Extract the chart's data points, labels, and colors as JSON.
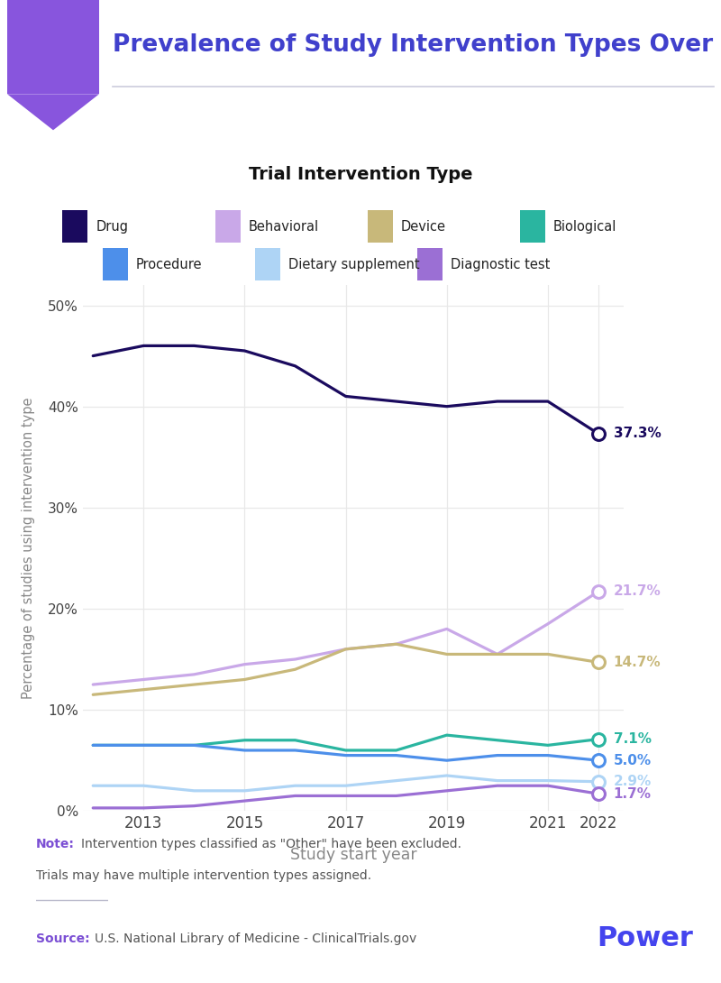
{
  "title": "Prevalence of Study Intervention Types Over Time",
  "subtitle": "Trial Intervention Type",
  "xlabel": "Study start year",
  "ylabel": "Percentage of studies using intervention type",
  "years": [
    2012,
    2013,
    2014,
    2015,
    2016,
    2017,
    2018,
    2019,
    2020,
    2021,
    2022
  ],
  "series": {
    "Drug": {
      "color": "#1a0a5e",
      "values": [
        45.0,
        46.0,
        46.0,
        45.5,
        44.0,
        41.0,
        40.5,
        40.0,
        40.5,
        40.5,
        37.3
      ],
      "end_label": "37.3%"
    },
    "Behavioral": {
      "color": "#c9a8e8",
      "values": [
        12.5,
        13.0,
        13.5,
        14.5,
        15.0,
        16.0,
        16.5,
        18.0,
        15.5,
        18.5,
        21.7
      ],
      "end_label": "21.7%"
    },
    "Device": {
      "color": "#c8b87a",
      "values": [
        11.5,
        12.0,
        12.5,
        13.0,
        14.0,
        16.0,
        16.5,
        15.5,
        15.5,
        15.5,
        14.7
      ],
      "end_label": "14.7%"
    },
    "Biological": {
      "color": "#2ab5a0",
      "values": [
        6.5,
        6.5,
        6.5,
        7.0,
        7.0,
        6.0,
        6.0,
        7.5,
        7.0,
        6.5,
        7.1
      ],
      "end_label": "7.1%"
    },
    "Procedure": {
      "color": "#4d8fea",
      "values": [
        6.5,
        6.5,
        6.5,
        6.0,
        6.0,
        5.5,
        5.5,
        5.0,
        5.5,
        5.5,
        5.0
      ],
      "end_label": "5.0%"
    },
    "Dietary supplement": {
      "color": "#aed4f5",
      "values": [
        2.5,
        2.5,
        2.0,
        2.0,
        2.5,
        2.5,
        3.0,
        3.5,
        3.0,
        3.0,
        2.9
      ],
      "end_label": "2.9%"
    },
    "Diagnostic test": {
      "color": "#9b6fd4",
      "values": [
        0.3,
        0.3,
        0.5,
        1.0,
        1.5,
        1.5,
        1.5,
        2.0,
        2.5,
        2.5,
        1.7
      ],
      "end_label": "1.7%"
    }
  },
  "ylim": [
    0,
    52
  ],
  "yticks": [
    0,
    10,
    20,
    30,
    40,
    50
  ],
  "xticks": [
    2013,
    2015,
    2017,
    2019,
    2021,
    2022
  ],
  "header_bg_color": "#8855dd",
  "title_color": "#4040cc",
  "note_label_color": "#7b4fd4",
  "source_label_color": "#7b4fd4",
  "power_color": "#4444ee",
  "source_text": "U.S. National Library of Medicine - ClinicalTrials.gov",
  "legend_row1": [
    "Drug",
    "Behavioral",
    "Device",
    "Biological"
  ],
  "legend_row2": [
    "Procedure",
    "Dietary supplement",
    "Diagnostic test"
  ]
}
